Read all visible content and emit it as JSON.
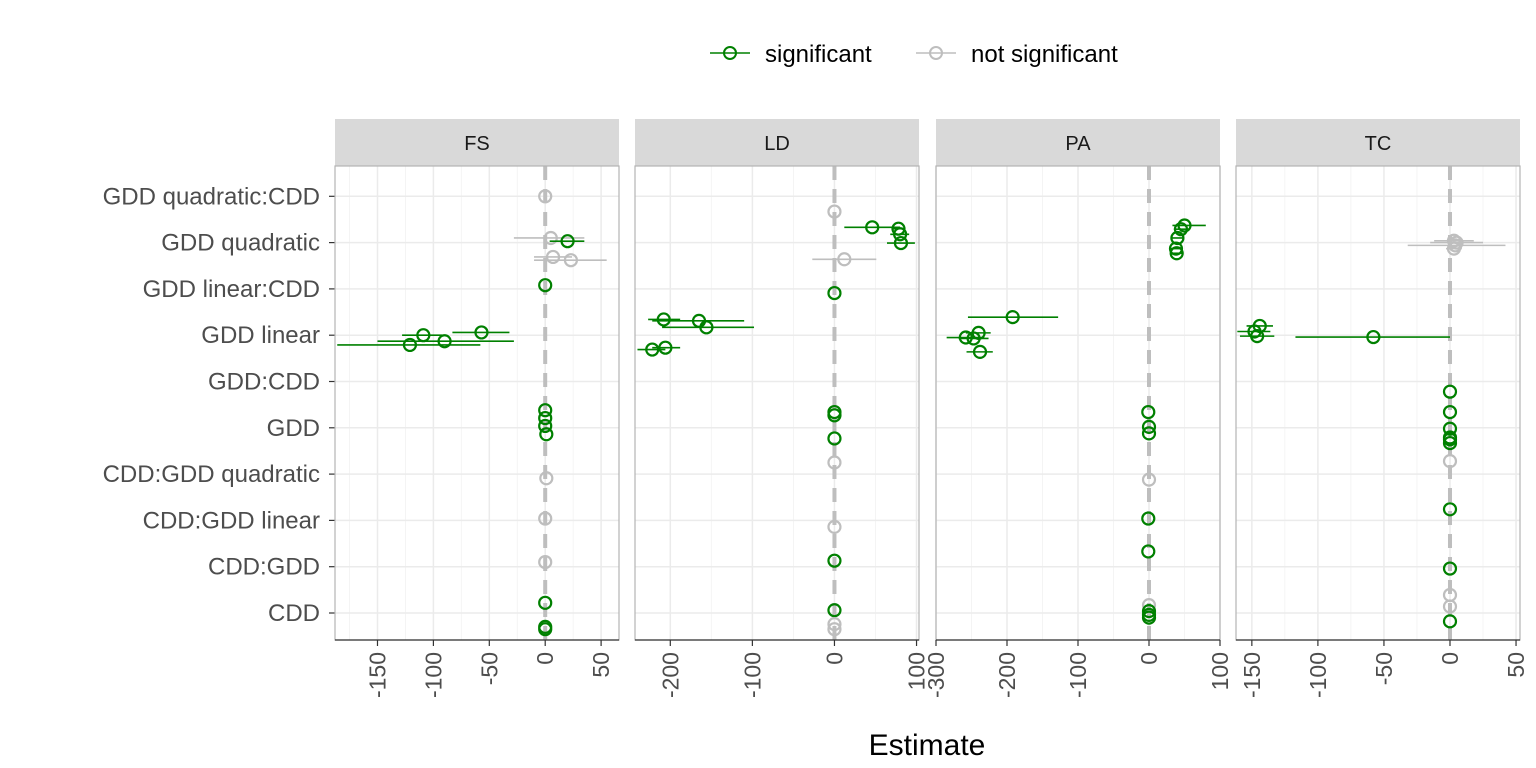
{
  "chart_data": {
    "type": "scatter",
    "subtype": "dot-and-whisker, faceted",
    "xlabel": "Estimate",
    "ylabel": "",
    "legend": {
      "placement": "top",
      "entries": [
        {
          "label": "significant",
          "color": "#008000"
        },
        {
          "label": "not significant",
          "color": "#bebebe"
        }
      ]
    },
    "colors": {
      "significant": "#008000",
      "not_significant": "#bebebe",
      "strip": "#d9d9d9",
      "grid": "#ebebeb",
      "zero_line": "#bebebe"
    },
    "grid": true,
    "categories": [
      "CDD",
      "CDD:GDD",
      "CDD:GDD linear",
      "CDD:GDD quadratic",
      "GDD",
      "GDD:CDD",
      "GDD linear",
      "GDD linear:CDD",
      "GDD quadratic",
      "GDD quadratic:CDD"
    ],
    "reference_line": 0,
    "panels": [
      {
        "name": "FS",
        "xlim": [
          -188,
          66
        ],
        "xticks": [
          -150,
          -100,
          -50,
          0,
          50
        ],
        "points": [
          {
            "term": "GDD quadratic:CDD",
            "offset": 0.0,
            "estimate": 0,
            "low": 0,
            "high": 0,
            "significant": false
          },
          {
            "term": "GDD quadratic",
            "offset": 0.1,
            "estimate": 5,
            "low": -28,
            "high": 35,
            "significant": false
          },
          {
            "term": "GDD quadratic",
            "offset": 0.03,
            "estimate": 20,
            "low": 4,
            "high": 35,
            "significant": true
          },
          {
            "term": "GDD quadratic",
            "offset": -0.31,
            "estimate": 7,
            "low": -10,
            "high": 24,
            "significant": false
          },
          {
            "term": "GDD quadratic",
            "offset": -0.38,
            "estimate": 23,
            "low": -10,
            "high": 55,
            "significant": false
          },
          {
            "term": "GDD linear:CDD",
            "offset": 0.08,
            "estimate": 0,
            "low": 0,
            "high": 0,
            "significant": true
          },
          {
            "term": "GDD linear",
            "offset": 0.06,
            "estimate": -57,
            "low": -83,
            "high": -32,
            "significant": true
          },
          {
            "term": "GDD linear",
            "offset": 0.0,
            "estimate": -109,
            "low": -128,
            "high": -92,
            "significant": true
          },
          {
            "term": "GDD linear",
            "offset": -0.13,
            "estimate": -90,
            "low": -150,
            "high": -28,
            "significant": true
          },
          {
            "term": "GDD linear",
            "offset": -0.21,
            "estimate": -121,
            "low": -186,
            "high": -58,
            "significant": true
          },
          {
            "term": "GDD",
            "offset": 0.38,
            "estimate": 0,
            "low": 0,
            "high": 0,
            "significant": true
          },
          {
            "term": "GDD",
            "offset": 0.21,
            "estimate": 0,
            "low": 0,
            "high": 0,
            "significant": true
          },
          {
            "term": "GDD",
            "offset": 0.04,
            "estimate": 0,
            "low": 0,
            "high": 0,
            "significant": true
          },
          {
            "term": "GDD",
            "offset": -0.14,
            "estimate": 1,
            "low": 1,
            "high": 1,
            "significant": true
          },
          {
            "term": "CDD:GDD quadratic",
            "offset": -0.09,
            "estimate": 1,
            "low": 1,
            "high": 1,
            "significant": false
          },
          {
            "term": "CDD:GDD linear",
            "offset": 0.04,
            "estimate": 0,
            "low": 0,
            "high": 0,
            "significant": false
          },
          {
            "term": "CDD:GDD",
            "offset": 0.1,
            "estimate": 0,
            "low": 0,
            "high": 0,
            "significant": false
          },
          {
            "term": "CDD",
            "offset": 0.22,
            "estimate": 0,
            "low": 0,
            "high": 0,
            "significant": true
          },
          {
            "term": "CDD",
            "offset": -0.3,
            "estimate": 0,
            "low": 0,
            "high": 0,
            "significant": true
          },
          {
            "term": "CDD",
            "offset": -0.35,
            "estimate": 0,
            "low": 0,
            "high": 0,
            "significant": true
          }
        ]
      },
      {
        "name": "LD",
        "xlim": [
          -243,
          103
        ],
        "xticks": [
          -200,
          -100,
          0,
          100
        ],
        "points": [
          {
            "term": "GDD quadratic:CDD",
            "offset": -0.33,
            "estimate": 0,
            "low": 0,
            "high": 0,
            "significant": false
          },
          {
            "term": "GDD quadratic",
            "offset": 0.33,
            "estimate": 46,
            "low": 12,
            "high": 80,
            "significant": true
          },
          {
            "term": "GDD quadratic",
            "offset": 0.3,
            "estimate": 78,
            "low": 70,
            "high": 86,
            "significant": true
          },
          {
            "term": "GDD quadratic",
            "offset": 0.18,
            "estimate": 80,
            "low": 68,
            "high": 91,
            "significant": true
          },
          {
            "term": "GDD quadratic",
            "offset": -0.01,
            "estimate": 81,
            "low": 64,
            "high": 98,
            "significant": true
          },
          {
            "term": "GDD quadratic",
            "offset": -0.36,
            "estimate": 12,
            "low": -27,
            "high": 51,
            "significant": false
          },
          {
            "term": "GDD linear:CDD",
            "offset": -0.09,
            "estimate": 0,
            "low": 0,
            "high": 0,
            "significant": true
          },
          {
            "term": "GDD linear",
            "offset": 0.34,
            "estimate": -208,
            "low": -227,
            "high": -188,
            "significant": true
          },
          {
            "term": "GDD linear",
            "offset": 0.31,
            "estimate": -165,
            "low": -222,
            "high": -110,
            "significant": true
          },
          {
            "term": "GDD linear",
            "offset": 0.17,
            "estimate": -156,
            "low": -210,
            "high": -98,
            "significant": true
          },
          {
            "term": "GDD linear",
            "offset": -0.27,
            "estimate": -206,
            "low": -222,
            "high": -188,
            "significant": true
          },
          {
            "term": "GDD linear",
            "offset": -0.31,
            "estimate": -222,
            "low": -240,
            "high": -206,
            "significant": true
          },
          {
            "term": "GDD",
            "offset": 0.34,
            "estimate": 0,
            "low": 0,
            "high": 0,
            "significant": true
          },
          {
            "term": "GDD",
            "offset": 0.27,
            "estimate": 0,
            "low": 0,
            "high": 0,
            "significant": true
          },
          {
            "term": "GDD",
            "offset": -0.23,
            "estimate": 0,
            "low": 0,
            "high": 0,
            "significant": true
          },
          {
            "term": "CDD:GDD quadratic",
            "offset": 0.25,
            "estimate": 0,
            "low": 0,
            "high": 0,
            "significant": false
          },
          {
            "term": "CDD:GDD linear",
            "offset": -0.14,
            "estimate": 0,
            "low": 0,
            "high": 0,
            "significant": false
          },
          {
            "term": "CDD:GDD",
            "offset": 0.13,
            "estimate": 0,
            "low": 0,
            "high": 0,
            "significant": true
          },
          {
            "term": "CDD",
            "offset": 0.06,
            "estimate": 0,
            "low": 0,
            "high": 0,
            "significant": true
          },
          {
            "term": "CDD",
            "offset": -0.24,
            "estimate": 0,
            "low": 0,
            "high": 0,
            "significant": false
          },
          {
            "term": "CDD",
            "offset": -0.35,
            "estimate": 0,
            "low": 0,
            "high": 0,
            "significant": false
          }
        ]
      },
      {
        "name": "PA",
        "xlim": [
          -300,
          100
        ],
        "xticks": [
          -300,
          -200,
          -100,
          0,
          100
        ],
        "points": [
          {
            "term": "GDD quadratic",
            "offset": 0.37,
            "estimate": 50,
            "low": 33,
            "high": 80,
            "significant": true
          },
          {
            "term": "GDD quadratic",
            "offset": 0.29,
            "estimate": 45,
            "low": 35,
            "high": 56,
            "significant": true
          },
          {
            "term": "GDD quadratic",
            "offset": 0.1,
            "estimate": 40,
            "low": 32,
            "high": 48,
            "significant": true
          },
          {
            "term": "GDD quadratic",
            "offset": -0.13,
            "estimate": 38,
            "low": 30,
            "high": 46,
            "significant": true
          },
          {
            "term": "GDD quadratic",
            "offset": -0.23,
            "estimate": 39,
            "low": 30,
            "high": 48,
            "significant": true
          },
          {
            "term": "GDD linear",
            "offset": 0.39,
            "estimate": -192,
            "low": -255,
            "high": -128,
            "significant": true
          },
          {
            "term": "GDD linear",
            "offset": 0.05,
            "estimate": -240,
            "low": -258,
            "high": -223,
            "significant": true
          },
          {
            "term": "GDD linear",
            "offset": -0.05,
            "estimate": -258,
            "low": -285,
            "high": -232,
            "significant": true
          },
          {
            "term": "GDD linear",
            "offset": -0.07,
            "estimate": -247,
            "low": -268,
            "high": -226,
            "significant": true
          },
          {
            "term": "GDD linear",
            "offset": -0.36,
            "estimate": -238,
            "low": -257,
            "high": -220,
            "significant": true
          },
          {
            "term": "GDD",
            "offset": 0.34,
            "estimate": -1,
            "low": -1,
            "high": -1,
            "significant": true
          },
          {
            "term": "GDD",
            "offset": 0.02,
            "estimate": 0,
            "low": 0,
            "high": 0,
            "significant": true
          },
          {
            "term": "GDD",
            "offset": -0.12,
            "estimate": 0,
            "low": 0,
            "high": 0,
            "significant": true
          },
          {
            "term": "CDD:GDD quadratic",
            "offset": -0.12,
            "estimate": 0,
            "low": 0,
            "high": 0,
            "significant": false
          },
          {
            "term": "CDD:GDD linear",
            "offset": 0.04,
            "estimate": -1,
            "low": -1,
            "high": -1,
            "significant": true
          },
          {
            "term": "CDD:GDD",
            "offset": 0.33,
            "estimate": -1,
            "low": -1,
            "high": -1,
            "significant": true
          },
          {
            "term": "CDD",
            "offset": 0.17,
            "estimate": 0,
            "low": 0,
            "high": 0,
            "significant": false
          },
          {
            "term": "CDD",
            "offset": 0.04,
            "estimate": 0,
            "low": 0,
            "high": 0,
            "significant": true
          },
          {
            "term": "CDD",
            "offset": -0.04,
            "estimate": 0,
            "low": 0,
            "high": 0,
            "significant": true
          },
          {
            "term": "CDD",
            "offset": -0.1,
            "estimate": 0,
            "low": 0,
            "high": 0,
            "significant": true
          }
        ]
      },
      {
        "name": "TC",
        "xlim": [
          -162,
          53
        ],
        "xticks": [
          -150,
          -100,
          -50,
          0,
          50
        ],
        "points": [
          {
            "term": "GDD quadratic",
            "offset": 0.04,
            "estimate": 3,
            "low": -12,
            "high": 18,
            "significant": false
          },
          {
            "term": "GDD quadratic",
            "offset": 0.0,
            "estimate": 5,
            "low": -15,
            "high": 25,
            "significant": false
          },
          {
            "term": "GDD quadratic",
            "offset": -0.06,
            "estimate": 4,
            "low": -32,
            "high": 42,
            "significant": false
          },
          {
            "term": "GDD quadratic",
            "offset": -0.13,
            "estimate": 3,
            "low": -3,
            "high": 9,
            "significant": false
          },
          {
            "term": "GDD linear",
            "offset": 0.2,
            "estimate": -144,
            "low": -154,
            "high": -134,
            "significant": true
          },
          {
            "term": "GDD linear",
            "offset": 0.08,
            "estimate": -148,
            "low": -161,
            "high": -136,
            "significant": true
          },
          {
            "term": "GDD linear",
            "offset": -0.04,
            "estimate": -58,
            "low": -117,
            "high": 0,
            "significant": true
          },
          {
            "term": "GDD linear",
            "offset": -0.02,
            "estimate": -146,
            "low": -159,
            "high": -133,
            "significant": true
          },
          {
            "term": "GDD:CDD",
            "offset": -0.22,
            "estimate": 0,
            "low": 0,
            "high": 0,
            "significant": true
          },
          {
            "term": "GDD",
            "offset": 0.34,
            "estimate": 0,
            "low": 0,
            "high": 0,
            "significant": true
          },
          {
            "term": "GDD",
            "offset": -0.02,
            "estimate": 0,
            "low": 0,
            "high": 0,
            "significant": true
          },
          {
            "term": "GDD",
            "offset": -0.21,
            "estimate": 0,
            "low": 0,
            "high": 0,
            "significant": true
          },
          {
            "term": "GDD",
            "offset": -0.25,
            "estimate": 0,
            "low": 0,
            "high": 0,
            "significant": true
          },
          {
            "term": "GDD",
            "offset": -0.33,
            "estimate": 0,
            "low": 0,
            "high": 0,
            "significant": true
          },
          {
            "term": "CDD:GDD quadratic",
            "offset": 0.28,
            "estimate": 0,
            "low": 0,
            "high": 0,
            "significant": false
          },
          {
            "term": "CDD:GDD linear",
            "offset": 0.24,
            "estimate": 0,
            "low": 0,
            "high": 0,
            "significant": true
          },
          {
            "term": "CDD:GDD",
            "offset": -0.04,
            "estimate": 0,
            "low": 0,
            "high": 0,
            "significant": true
          },
          {
            "term": "CDD",
            "offset": 0.39,
            "estimate": 0,
            "low": 0,
            "high": 0,
            "significant": false
          },
          {
            "term": "CDD",
            "offset": 0.14,
            "estimate": 0,
            "low": 0,
            "high": 0,
            "significant": false
          },
          {
            "term": "CDD",
            "offset": -0.18,
            "estimate": 0,
            "low": 0,
            "high": 0,
            "significant": true
          }
        ]
      }
    ]
  }
}
